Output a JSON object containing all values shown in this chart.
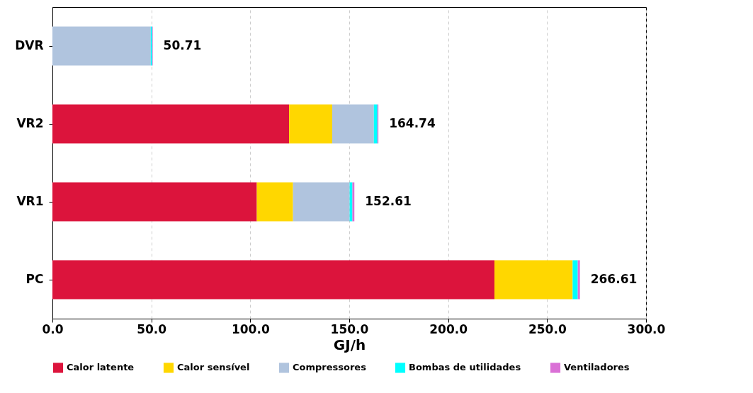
{
  "chart_data": {
    "type": "bar",
    "orientation": "horizontal",
    "stacked": true,
    "categories": [
      "DVR",
      "VR2",
      "VR1",
      "PC"
    ],
    "series": [
      {
        "name": "Calor latente",
        "color": "#dc143c",
        "values": [
          0,
          119.6,
          103.3,
          223.4
        ]
      },
      {
        "name": "Calor sensível",
        "color": "#ffd700",
        "values": [
          0,
          21.8,
          18.3,
          39.5
        ]
      },
      {
        "name": "Compressores",
        "color": "#b0c4de",
        "values": [
          49.7,
          21.04,
          28.6,
          0
        ]
      },
      {
        "name": "Bombas de utilidades",
        "color": "#00ffff",
        "values": [
          0.7,
          1.8,
          1.4,
          2.6
        ]
      },
      {
        "name": "Ventiladores",
        "color": "#da70d6",
        "values": [
          0.3,
          0.5,
          1.0,
          1.1
        ]
      }
    ],
    "totals": [
      "50.71",
      "164.74",
      "152.61",
      "266.61"
    ],
    "xlabel": "GJ/h",
    "xlim": [
      0,
      300
    ],
    "xticks": [
      {
        "value": 0,
        "label": "0.0"
      },
      {
        "value": 50,
        "label": "50.0"
      },
      {
        "value": 100,
        "label": "100.0"
      },
      {
        "value": 150,
        "label": "150.0"
      },
      {
        "value": 200,
        "label": "200.0"
      },
      {
        "value": 250,
        "label": "250.0"
      },
      {
        "value": 300,
        "label": "300.0"
      }
    ],
    "grid": "x",
    "legend": "bottom"
  }
}
